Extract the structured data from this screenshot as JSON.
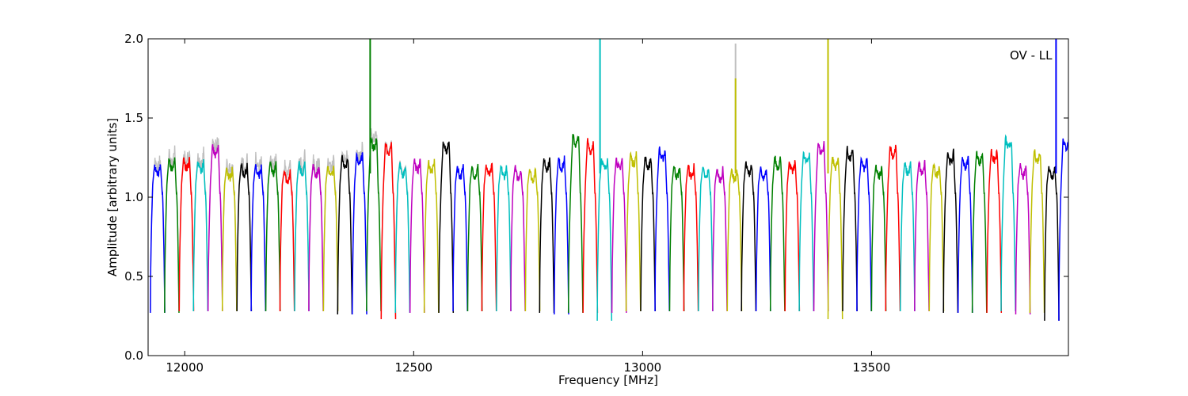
{
  "chart_data": {
    "type": "line",
    "title": "",
    "xlabel": "Frequency [MHz]",
    "ylabel": "Amplitude [arbitrary units]",
    "annotation": "OV - LL",
    "xlim": [
      11920,
      13930
    ],
    "ylim": [
      0.0,
      2.0
    ],
    "grid": false,
    "legend": "none",
    "x_ticks": [
      12000,
      12500,
      13000,
      13500
    ],
    "x_tick_labels": [
      "12000",
      "12500",
      "13000",
      "13500"
    ],
    "y_ticks": [
      0.0,
      0.5,
      1.0,
      1.5,
      2.0
    ],
    "y_tick_labels": [
      "0.0",
      "0.5",
      "1.0",
      "1.5",
      "2.0"
    ],
    "subband_width_mhz": 31.5,
    "series_colors": [
      "#0000ff",
      "#008000",
      "#ff0000",
      "#00bfbf",
      "#bf00bf",
      "#bfbf00",
      "#000000"
    ],
    "background_series_color": "#bfbfbf",
    "subband_start_mhz": [
      11925,
      11956,
      11988,
      12019,
      12051,
      12082,
      12114,
      12145,
      12177,
      12208,
      12240,
      12271,
      12303,
      12334,
      12366,
      12397,
      12429,
      12460,
      12492,
      12523,
      12555,
      12586,
      12618,
      12649,
      12681,
      12712,
      12744,
      12775,
      12807,
      12838,
      12870,
      12901,
      12933,
      12964,
      12996,
      13027,
      13059,
      13090,
      13122,
      13153,
      13185,
      13216,
      13248,
      13279,
      13311,
      13342,
      13374,
      13405,
      13437,
      13468,
      13500,
      13531,
      13563,
      13594,
      13626,
      13657,
      13689,
      13720,
      13752,
      13783,
      13815,
      13846,
      13878,
      13909
    ],
    "subband_peak_amplitude": [
      1.21,
      1.25,
      1.25,
      1.23,
      1.33,
      1.19,
      1.21,
      1.2,
      1.22,
      1.17,
      1.22,
      1.21,
      1.2,
      1.26,
      1.28,
      1.38,
      1.35,
      1.21,
      1.24,
      1.23,
      1.36,
      1.2,
      1.2,
      1.21,
      1.2,
      1.19,
      1.18,
      1.25,
      1.25,
      1.4,
      1.36,
      1.25,
      1.25,
      1.28,
      1.26,
      1.31,
      1.2,
      1.2,
      1.19,
      1.18,
      1.18,
      1.22,
      1.18,
      1.26,
      1.23,
      1.29,
      1.35,
      1.26,
      1.31,
      1.25,
      1.2,
      1.33,
      1.22,
      1.22,
      1.21,
      1.29,
      1.26,
      1.29,
      1.3,
      1.38,
      1.2,
      1.3,
      1.2,
      1.38
    ],
    "subband_min_amplitude": [
      0.27,
      0.27,
      0.28,
      0.28,
      0.28,
      0.28,
      0.28,
      0.28,
      0.28,
      0.28,
      0.28,
      0.28,
      0.28,
      0.26,
      0.26,
      0.28,
      0.23,
      0.27,
      0.27,
      0.27,
      0.27,
      0.28,
      0.28,
      0.28,
      0.28,
      0.28,
      0.28,
      0.27,
      0.26,
      0.27,
      0.27,
      0.22,
      0.27,
      0.28,
      0.28,
      0.28,
      0.28,
      0.28,
      0.28,
      0.28,
      0.28,
      0.28,
      0.28,
      0.28,
      0.28,
      0.28,
      0.28,
      0.23,
      0.28,
      0.28,
      0.28,
      0.28,
      0.28,
      0.28,
      0.28,
      0.27,
      0.27,
      0.27,
      0.27,
      0.28,
      0.26,
      0.27,
      0.22,
      0.22
    ],
    "spikes": [
      {
        "x": 12405,
        "y": 2.0,
        "color": "#008000"
      },
      {
        "x": 12907,
        "y": 2.0,
        "color": "#00bfbf"
      },
      {
        "x": 13203,
        "y": 1.97,
        "color": "#bfbfbf"
      },
      {
        "x": 13203,
        "y": 1.75,
        "color": "#bfbf00"
      },
      {
        "x": 13405,
        "y": 2.0,
        "color": "#bfbf00"
      },
      {
        "x": 13903,
        "y": 2.0,
        "color": "#0000ff"
      }
    ]
  }
}
